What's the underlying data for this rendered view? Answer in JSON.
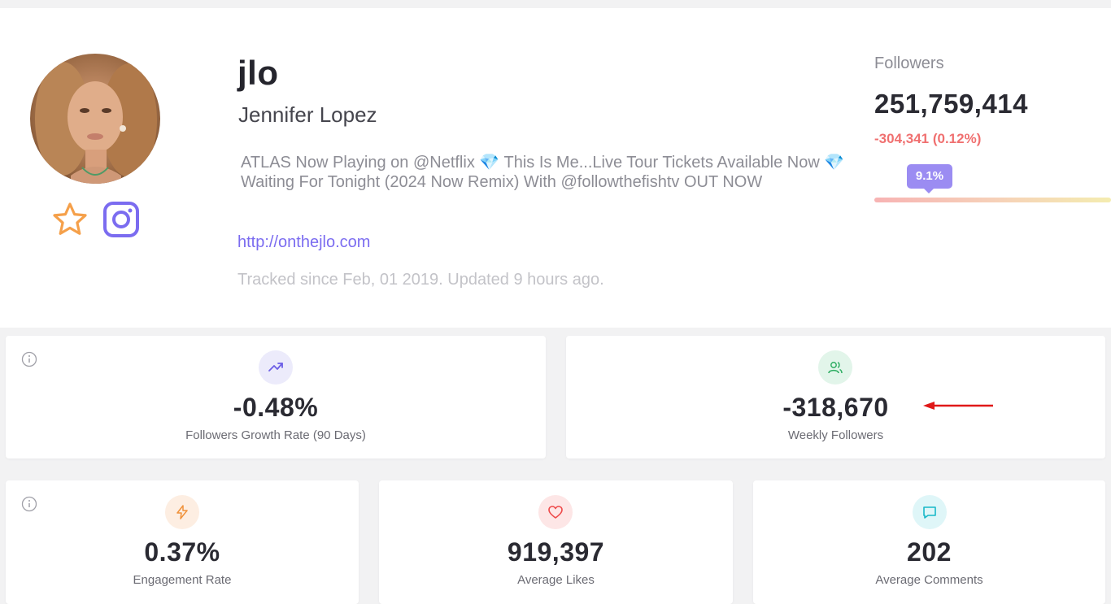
{
  "profile": {
    "username": "jlo",
    "full_name": "Jennifer Lopez",
    "bio": "ATLAS Now Playing on @Netflix 💎 This Is Me...Live Tour Tickets Available Now 💎 Waiting For Tonight (2024 Now Remix) With @followthefishtv OUT NOW",
    "website": "http://onthejlo.com",
    "tracked": "Tracked since Feb, 01 2019. Updated 9 hours ago.",
    "icons": {
      "favorite": "star-icon",
      "platform": "instagram-icon"
    }
  },
  "followers": {
    "label": "Followers",
    "count": "251,759,414",
    "change": "-304,341 (0.12%)",
    "bar_marker": "9.1%",
    "bar_level_percent": 9.1
  },
  "stats": {
    "growth_rate": {
      "value": "-0.48%",
      "label": "Followers Growth Rate (90 Days)",
      "icon": "trending-up-icon"
    },
    "weekly_followers": {
      "value": "-318,670",
      "label": "Weekly Followers",
      "icon": "users-icon"
    },
    "engagement_rate": {
      "value": "0.37%",
      "label": "Engagement Rate",
      "icon": "lightning-icon"
    },
    "average_likes": {
      "value": "919,397",
      "label": "Average Likes",
      "icon": "heart-icon"
    },
    "average_comments": {
      "value": "202",
      "label": "Average Comments",
      "icon": "comment-icon"
    }
  },
  "colors": {
    "accent": "#7b6cf0",
    "negative": "#f07070",
    "star": "#f5a04a",
    "annotation_arrow": "#e01818"
  }
}
